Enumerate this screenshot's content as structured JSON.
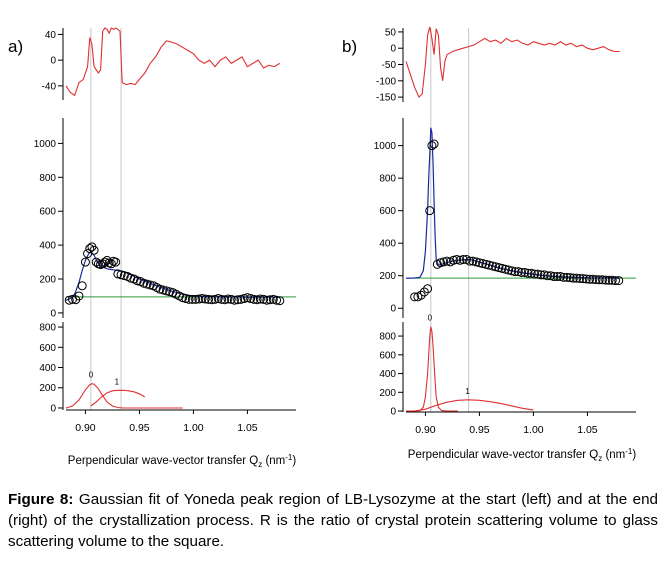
{
  "figure": {
    "caption_label": "Figure 8:",
    "caption_text": "Gaussian fit of Yoneda peak region of LB-Lysozyme at the start (left) and at the end (right) of the crystallization process. R is the ratio of crystal protein  scattering volume to glass scattering volume to the square."
  },
  "colors": {
    "data": "#000000",
    "fit": "#1a2a9e",
    "baseline": "#2e9b3a",
    "residual": "#e03030",
    "components": "#e03030",
    "guide": "#c8c8c8"
  },
  "chart_data": [
    {
      "panel": "a)",
      "type": "line",
      "xlabel": "Perpendicular wave-vector transfer Q",
      "xlabel_sub": "z",
      "xlabel_unit_pre": " (nm",
      "xlabel_unit_sup": "-1",
      "xlabel_unit_post": ")",
      "xlim": [
        0.882,
        1.095
      ],
      "xticks": [
        0.9,
        0.95,
        1.0,
        1.05
      ],
      "xticklabels": [
        "0.90",
        "0.95",
        "1.00",
        "1.05"
      ],
      "guide_lines_x": [
        0.905,
        0.933
      ],
      "residuals": {
        "ylim": [
          -62,
          50
        ],
        "yticks": [
          40,
          0,
          -40
        ],
        "yticklabels": [
          "40",
          "0",
          "-40"
        ],
        "x": [
          0.882,
          0.886,
          0.89,
          0.894,
          0.898,
          0.902,
          0.904,
          0.906,
          0.908,
          0.91,
          0.912,
          0.914,
          0.916,
          0.918,
          0.92,
          0.922,
          0.924,
          0.926,
          0.928,
          0.93,
          0.932,
          0.934,
          0.938,
          0.942,
          0.946,
          0.95,
          0.955,
          0.96,
          0.965,
          0.97,
          0.975,
          0.98,
          0.985,
          0.99,
          0.995,
          1.0,
          1.005,
          1.01,
          1.015,
          1.02,
          1.025,
          1.03,
          1.035,
          1.04,
          1.045,
          1.05,
          1.055,
          1.06,
          1.065,
          1.07,
          1.075,
          1.08
        ],
        "y": [
          -40,
          -50,
          -55,
          -35,
          -30,
          -10,
          35,
          25,
          -10,
          -15,
          -20,
          -15,
          45,
          50,
          48,
          42,
          50,
          48,
          50,
          48,
          45,
          -35,
          -38,
          -36,
          -38,
          -30,
          -20,
          -5,
          5,
          20,
          30,
          28,
          25,
          20,
          15,
          10,
          0,
          -5,
          0,
          -10,
          0,
          5,
          -5,
          0,
          5,
          -10,
          -5,
          0,
          -12,
          -8,
          -10,
          -5
        ]
      },
      "main": {
        "ylim": [
          -30,
          1150
        ],
        "yticks": [
          0,
          200,
          400,
          600,
          800,
          1000
        ],
        "yticklabels": [
          "0",
          "200",
          "400",
          "600",
          "800",
          "1000"
        ],
        "baseline": 95,
        "data_x": [
          0.885,
          0.888,
          0.891,
          0.894,
          0.897,
          0.9,
          0.902,
          0.904,
          0.906,
          0.908,
          0.91,
          0.912,
          0.914,
          0.916,
          0.918,
          0.92,
          0.922,
          0.924,
          0.926,
          0.928,
          0.93,
          0.933,
          0.936,
          0.939,
          0.942,
          0.945,
          0.948,
          0.951,
          0.954,
          0.957,
          0.96,
          0.963,
          0.966,
          0.969,
          0.972,
          0.975,
          0.978,
          0.981,
          0.984,
          0.987,
          0.99,
          0.993,
          0.996,
          0.999,
          1.002,
          1.005,
          1.008,
          1.011,
          1.014,
          1.017,
          1.02,
          1.023,
          1.026,
          1.029,
          1.032,
          1.035,
          1.038,
          1.041,
          1.044,
          1.047,
          1.05,
          1.053,
          1.056,
          1.059,
          1.062,
          1.065,
          1.068,
          1.071,
          1.074,
          1.077,
          1.08
        ],
        "data_y": [
          75,
          80,
          78,
          100,
          160,
          300,
          350,
          380,
          390,
          370,
          300,
          290,
          285,
          290,
          300,
          310,
          295,
          290,
          305,
          300,
          230,
          225,
          220,
          215,
          205,
          200,
          190,
          185,
          175,
          170,
          165,
          160,
          150,
          140,
          135,
          130,
          125,
          120,
          110,
          100,
          90,
          85,
          80,
          80,
          80,
          82,
          85,
          82,
          80,
          78,
          80,
          85,
          80,
          78,
          82,
          80,
          75,
          78,
          80,
          85,
          90,
          85,
          80,
          78,
          82,
          80,
          75,
          78,
          80,
          75,
          72
        ],
        "fit_x": [
          0.882,
          0.886,
          0.89,
          0.894,
          0.897,
          0.9,
          0.903,
          0.905,
          0.908,
          0.911,
          0.915,
          0.92,
          0.925,
          0.93,
          0.935,
          0.94,
          0.945,
          0.95,
          0.96,
          0.97,
          0.98,
          0.99,
          1.0,
          1.01,
          1.02,
          1.03,
          1.04,
          1.05,
          1.06,
          1.07,
          1.08
        ],
        "fit_y": [
          75,
          85,
          110,
          180,
          250,
          310,
          350,
          360,
          340,
          300,
          275,
          260,
          255,
          250,
          245,
          232,
          215,
          200,
          175,
          150,
          128,
          110,
          100,
          96,
          95,
          94,
          94,
          94,
          93,
          93,
          92
        ]
      },
      "components": {
        "ylim": [
          -20,
          850
        ],
        "yticks": [
          0,
          200,
          400,
          600,
          800
        ],
        "yticklabels": [
          "0",
          "200",
          "400",
          "600",
          "800"
        ],
        "peaks": [
          {
            "label": "0",
            "x": [
              0.882,
              0.888,
              0.894,
              0.9,
              0.904,
              0.906,
              0.908,
              0.912,
              0.916,
              0.92,
              0.925,
              0.93,
              0.935,
              0.94,
              0.945,
              0.95,
              0.96,
              0.97,
              0.98,
              0.99
            ],
            "y": [
              0,
              20,
              80,
              180,
              230,
              240,
              235,
              190,
              120,
              60,
              20,
              5,
              0,
              0,
              0,
              0,
              0,
              0,
              0,
              0
            ]
          },
          {
            "label": "1",
            "x": [
              0.905,
              0.91,
              0.915,
              0.92,
              0.925,
              0.93,
              0.935,
              0.94,
              0.945,
              0.95,
              0.955
            ],
            "y": [
              20,
              60,
              110,
              150,
              170,
              175,
              175,
              170,
              160,
              140,
              110
            ]
          }
        ]
      }
    },
    {
      "panel": "b)",
      "type": "line",
      "xlabel": "Perpendicular wave-vector transfer Q",
      "xlabel_sub": "z",
      "xlabel_unit_pre": " (nm",
      "xlabel_unit_sup": "-1",
      "xlabel_unit_post": ")",
      "xlim": [
        0.882,
        1.095
      ],
      "xticks": [
        0.9,
        0.95,
        1.0,
        1.05
      ],
      "xticklabels": [
        "0.90",
        "0.95",
        "1.00",
        "1.05"
      ],
      "guide_lines_x": [
        0.905,
        0.94
      ],
      "residuals": {
        "ylim": [
          -165,
          62
        ],
        "yticks": [
          50,
          0,
          -50,
          -100,
          -150
        ],
        "yticklabels": [
          "50",
          "0",
          "-50",
          "-100",
          "-150"
        ],
        "x": [
          0.882,
          0.886,
          0.89,
          0.894,
          0.897,
          0.9,
          0.902,
          0.904,
          0.906,
          0.908,
          0.91,
          0.912,
          0.914,
          0.916,
          0.918,
          0.92,
          0.925,
          0.93,
          0.935,
          0.94,
          0.945,
          0.95,
          0.955,
          0.96,
          0.965,
          0.97,
          0.975,
          0.98,
          0.985,
          0.99,
          0.995,
          1.0,
          1.005,
          1.01,
          1.015,
          1.02,
          1.025,
          1.03,
          1.035,
          1.04,
          1.045,
          1.05,
          1.055,
          1.06,
          1.065,
          1.07,
          1.075,
          1.08
        ],
        "y": [
          -40,
          -80,
          -120,
          -150,
          -140,
          -50,
          40,
          65,
          30,
          -20,
          60,
          40,
          -60,
          -100,
          -40,
          -20,
          -10,
          -5,
          0,
          5,
          10,
          20,
          30,
          20,
          25,
          15,
          30,
          20,
          25,
          15,
          10,
          20,
          15,
          10,
          15,
          10,
          20,
          10,
          15,
          5,
          10,
          0,
          -5,
          0,
          5,
          -5,
          -10,
          -10
        ]
      },
      "main": {
        "ylim": [
          -60,
          1170
        ],
        "yticks": [
          0,
          200,
          400,
          600,
          800,
          1000
        ],
        "yticklabels": [
          "0",
          "200",
          "400",
          "600",
          "800",
          "1000"
        ],
        "baseline": 185,
        "data_x": [
          0.89,
          0.893,
          0.896,
          0.899,
          0.902,
          0.904,
          0.906,
          0.908,
          0.911,
          0.914,
          0.917,
          0.92,
          0.923,
          0.926,
          0.929,
          0.932,
          0.935,
          0.938,
          0.941,
          0.944,
          0.947,
          0.95,
          0.953,
          0.956,
          0.959,
          0.962,
          0.965,
          0.968,
          0.971,
          0.974,
          0.977,
          0.98,
          0.983,
          0.986,
          0.989,
          0.992,
          0.995,
          0.998,
          1.001,
          1.004,
          1.007,
          1.01,
          1.013,
          1.016,
          1.019,
          1.022,
          1.025,
          1.028,
          1.031,
          1.034,
          1.037,
          1.04,
          1.043,
          1.046,
          1.049,
          1.052,
          1.055,
          1.058,
          1.061,
          1.064,
          1.067,
          1.07,
          1.073,
          1.076,
          1.079
        ],
        "data_y": [
          70,
          70,
          80,
          100,
          120,
          600,
          1000,
          1010,
          270,
          280,
          285,
          290,
          285,
          295,
          300,
          295,
          300,
          300,
          290,
          290,
          285,
          280,
          275,
          270,
          265,
          260,
          255,
          250,
          245,
          240,
          235,
          230,
          225,
          225,
          220,
          220,
          215,
          215,
          210,
          210,
          205,
          205,
          200,
          200,
          195,
          195,
          195,
          190,
          190,
          188,
          185,
          185,
          183,
          182,
          180,
          178,
          178,
          176,
          175,
          175,
          173,
          172,
          172,
          170,
          170
        ],
        "fit_x": [
          0.882,
          0.89,
          0.895,
          0.898,
          0.9,
          0.902,
          0.903,
          0.904,
          0.905,
          0.906,
          0.907,
          0.908,
          0.909,
          0.91,
          0.912,
          0.915,
          0.92,
          0.925,
          0.93,
          0.935,
          0.94,
          0.945,
          0.95,
          0.96,
          0.97,
          0.98,
          0.99,
          1.0,
          1.01,
          1.02,
          1.03,
          1.04,
          1.05,
          1.06,
          1.07,
          1.08
        ],
        "fit_y": [
          185,
          186,
          190,
          230,
          350,
          600,
          800,
          950,
          1110,
          1080,
          900,
          650,
          430,
          300,
          265,
          270,
          280,
          290,
          295,
          298,
          300,
          295,
          285,
          265,
          245,
          230,
          218,
          208,
          200,
          195,
          192,
          190,
          188,
          187,
          186,
          185
        ]
      },
      "components": {
        "ylim": [
          -10,
          950
        ],
        "yticks": [
          0,
          200,
          400,
          600,
          800
        ],
        "yticklabels": [
          "0",
          "200",
          "400",
          "600",
          "800"
        ],
        "peaks": [
          {
            "label": "0",
            "x": [
              0.882,
              0.89,
              0.895,
              0.898,
              0.9,
              0.902,
              0.903,
              0.904,
              0.905,
              0.906,
              0.907,
              0.908,
              0.909,
              0.91,
              0.912,
              0.915,
              0.92,
              0.93
            ],
            "y": [
              0,
              0,
              5,
              40,
              150,
              400,
              600,
              800,
              900,
              850,
              700,
              500,
              300,
              150,
              40,
              5,
              0,
              0
            ]
          },
          {
            "label": "1",
            "x": [
              0.89,
              0.9,
              0.91,
              0.92,
              0.93,
              0.94,
              0.95,
              0.96,
              0.97,
              0.98,
              0.99,
              1.0
            ],
            "y": [
              0,
              20,
              60,
              95,
              115,
              120,
              115,
              100,
              80,
              55,
              30,
              10
            ]
          }
        ]
      }
    }
  ]
}
